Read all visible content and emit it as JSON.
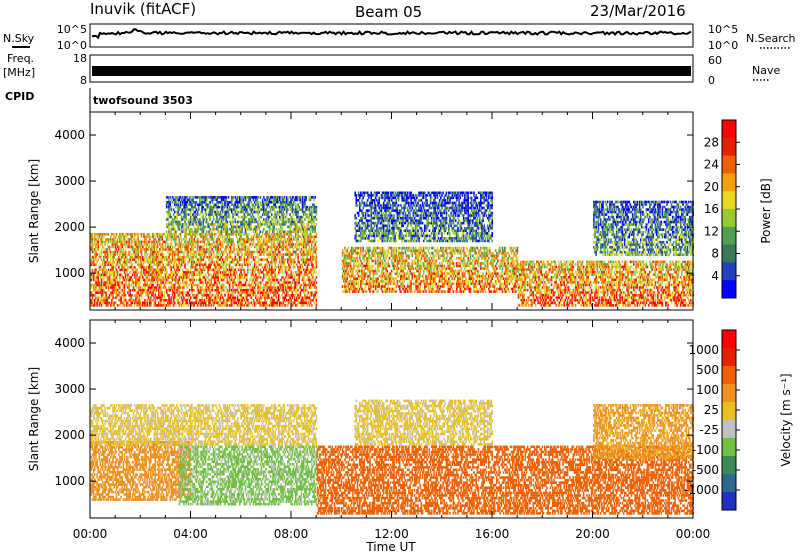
{
  "header": {
    "station": "Inuvik (fitACF)",
    "beam": "Beam 05",
    "date": "23/Mar/2016"
  },
  "top_panels": {
    "nsky_label": "N.Sky",
    "nsearch_label": "N.Search",
    "freq_label_line1": "Freq.",
    "freq_label_line2": "[MHz]",
    "nave_label": "Nave",
    "cpid_label": "CPID",
    "cpid_value": "twofsound 3503",
    "noise_left_ticks": [
      "10^5",
      "10^0"
    ],
    "noise_right_ticks": [
      "10^5",
      "10^0"
    ],
    "freq_left_ticks": [
      "18",
      "8"
    ],
    "nave_right_ticks": [
      "60",
      "0"
    ]
  },
  "colorbars": {
    "power": {
      "label": "Power [dB]",
      "ticks": [
        "28",
        "24",
        "20",
        "16",
        "12",
        "8",
        "4"
      ],
      "colors": [
        "#0000ff",
        "#2040c0",
        "#3a7a5a",
        "#4fa050",
        "#96cc30",
        "#e8d820",
        "#f5a010",
        "#f06000",
        "#e82000",
        "#ff0000"
      ]
    },
    "velocity": {
      "label": "Velocity [m s⁻¹]",
      "ticks": [
        "1000",
        "500",
        "100",
        "25",
        "-25",
        "-100",
        "-500",
        "-1000"
      ],
      "colors": [
        "#2030c0",
        "#2a6a90",
        "#3a8a5a",
        "#70c040",
        "#c0c0c0",
        "#e8c020",
        "#f09020",
        "#f06000",
        "#e82000",
        "#ff0000"
      ]
    }
  },
  "chart_data": [
    {
      "type": "heatmap",
      "title": "Power",
      "xlabel": "",
      "ylabel": "Slant Range [km]",
      "y_ticks": [
        "1000",
        "2000",
        "3000",
        "4000"
      ],
      "ylim": [
        200,
        4500
      ],
      "xlim": [
        "00:00",
        "24:00"
      ],
      "x_ticks": [
        "00:00",
        "04:00",
        "08:00",
        "12:00",
        "16:00",
        "20:00",
        "00:00"
      ],
      "colorbar": "Power [dB]",
      "bands": [
        {
          "t_start": 0.0,
          "t_end": 9.0,
          "r_min": 300,
          "r_max": 1900,
          "level": 26
        },
        {
          "t_start": 3.0,
          "t_end": 9.0,
          "r_min": 1900,
          "r_max": 2700,
          "level": 14
        },
        {
          "t_start": 10.0,
          "t_end": 17.0,
          "r_min": 600,
          "r_max": 1600,
          "level": 24
        },
        {
          "t_start": 10.5,
          "t_end": 16.0,
          "r_min": 1700,
          "r_max": 2800,
          "level": 10
        },
        {
          "t_start": 17.0,
          "t_end": 24.0,
          "r_min": 300,
          "r_max": 1300,
          "level": 26
        },
        {
          "t_start": 20.0,
          "t_end": 24.0,
          "r_min": 1400,
          "r_max": 2600,
          "level": 12
        }
      ]
    },
    {
      "type": "heatmap",
      "title": "Velocity",
      "xlabel": "Time UT",
      "ylabel": "Slant Range [km]",
      "y_ticks": [
        "1000",
        "2000",
        "3000",
        "4000"
      ],
      "ylim": [
        200,
        4500
      ],
      "xlim": [
        "00:00",
        "24:00"
      ],
      "x_ticks": [
        "00:00",
        "04:00",
        "08:00",
        "12:00",
        "16:00",
        "20:00",
        "00:00"
      ],
      "colorbar": "Velocity [m s⁻¹]",
      "bands": [
        {
          "t_start": 0.0,
          "t_end": 4.0,
          "r_min": 600,
          "r_max": 1900,
          "level": -60
        },
        {
          "t_start": 0.0,
          "t_end": 9.0,
          "r_min": 1800,
          "r_max": 2700,
          "level": 10
        },
        {
          "t_start": 3.5,
          "t_end": 9.0,
          "r_min": 500,
          "r_max": 1800,
          "level": 150
        },
        {
          "t_start": 9.0,
          "t_end": 24.0,
          "r_min": 300,
          "r_max": 1800,
          "level": -300
        },
        {
          "t_start": 10.5,
          "t_end": 16.0,
          "r_min": 1800,
          "r_max": 2800,
          "level": 10
        },
        {
          "t_start": 20.0,
          "t_end": 24.0,
          "r_min": 1500,
          "r_max": 2700,
          "level": -40
        }
      ]
    }
  ]
}
